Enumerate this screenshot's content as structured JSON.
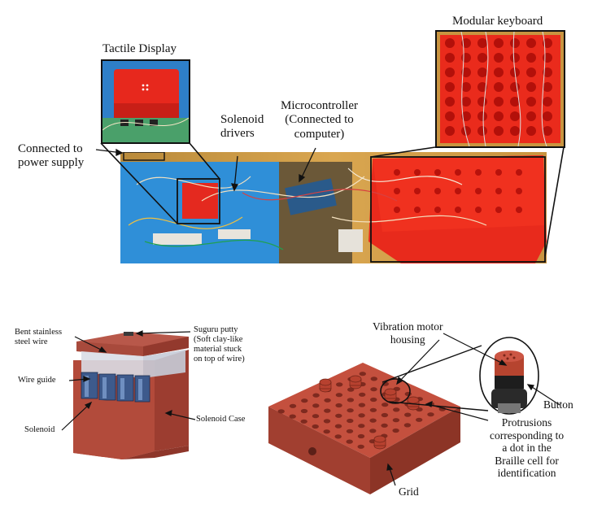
{
  "top_figure": {
    "labels": {
      "tactile_display": "Tactile Display",
      "modular_keyboard": "Modular keyboard",
      "solenoid_drivers": "Solenoid\ndrivers",
      "microcontroller": "Microcontroller\n(Connected to\ncomputer)",
      "connected_power": "Connected to\npower supply"
    }
  },
  "bottom_left_figure": {
    "labels": {
      "bent_wire": "Bent stainless\nsteel wire",
      "wire_guide": "Wire guide",
      "solenoid": "Solenoid",
      "suguru_putty": "Suguru putty\n(Soft clay-like\nmaterial stuck\non top of wire)",
      "solenoid_case": "Solenoid Case"
    }
  },
  "bottom_right_figure": {
    "labels": {
      "vibration_motor": "Vibration motor\nhousing",
      "button": "Button",
      "protrusions": "Protrusions\ncorresponding to\na dot in the\nBraille cell for\nidentification",
      "grid": "Grid"
    }
  },
  "colors": {
    "red": "#e3201b",
    "case_red": "#b8473a",
    "blue_table": "#2e8fd6",
    "wood": "#d8a24a"
  }
}
